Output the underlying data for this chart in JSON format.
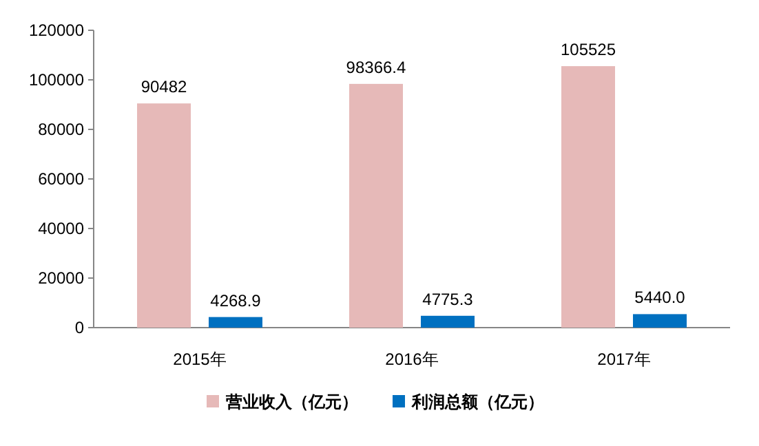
{
  "chart_data": {
    "type": "bar",
    "categories": [
      "2015年",
      "2016年",
      "2017年"
    ],
    "series": [
      {
        "name": "营业收入（亿元）",
        "color": "#e6b9b8",
        "values": [
          90482,
          98366.4,
          105525
        ],
        "value_labels": [
          "90482",
          "98366.4",
          "105525"
        ]
      },
      {
        "name": "利润总额（亿元）",
        "color": "#0070c0",
        "values": [
          4268.9,
          4775.3,
          5440.0
        ],
        "value_labels": [
          "4268.9",
          "4775.3",
          "5440.0"
        ]
      }
    ],
    "ylim": [
      0,
      120000
    ],
    "yticks": [
      0,
      20000,
      40000,
      60000,
      80000,
      100000,
      120000
    ],
    "grid": false,
    "legend": "bottom"
  }
}
